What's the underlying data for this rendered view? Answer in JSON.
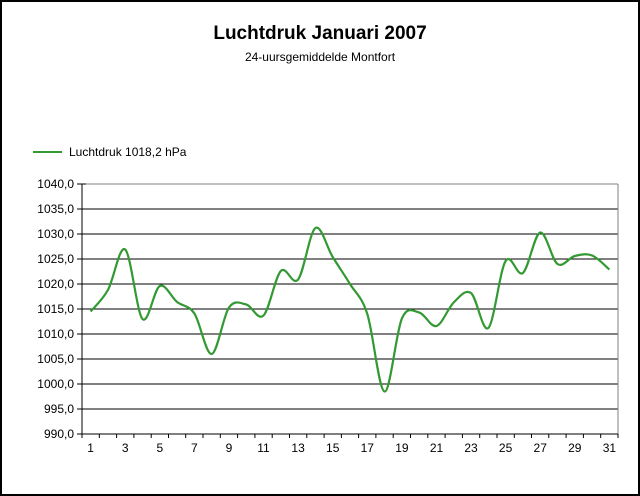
{
  "chart_data": {
    "type": "line",
    "title": "Luchtdruk Januari 2007",
    "subtitle": "24-uursgemiddelde Montfort",
    "legend_position": "left-above-plot",
    "grid": true,
    "line_color": "#339933",
    "plot_border_color": "#808080",
    "gridline_color": "#000000",
    "axis_color": "#000000",
    "xlabel": "",
    "ylabel": "",
    "ylim": [
      990,
      1040
    ],
    "ytick_step": 5,
    "ytick_values": [
      990,
      995,
      1000,
      1005,
      1010,
      1015,
      1020,
      1025,
      1030,
      1035,
      1040
    ],
    "ytick_labels": [
      "990,0",
      "995,0",
      "1000,0",
      "1005,0",
      "1010,0",
      "1015,0",
      "1020,0",
      "1025,0",
      "1030,0",
      "1035,0",
      "1040,0"
    ],
    "x": [
      1,
      2,
      3,
      4,
      5,
      6,
      7,
      8,
      9,
      10,
      11,
      12,
      13,
      14,
      15,
      16,
      17,
      18,
      19,
      20,
      21,
      22,
      23,
      24,
      25,
      26,
      27,
      28,
      29,
      30,
      31
    ],
    "xtick_labels": [
      1,
      3,
      5,
      7,
      9,
      11,
      13,
      15,
      17,
      19,
      21,
      23,
      25,
      27,
      29,
      31
    ],
    "series": [
      {
        "name": "Luchtdruk 1018,2 hPa",
        "values": [
          1014.5,
          1018.8,
          1026.9,
          1013.0,
          1019.6,
          1016.4,
          1014.1,
          1006.0,
          1015.3,
          1015.9,
          1013.7,
          1022.6,
          1020.9,
          1031.2,
          1025.4,
          1020.0,
          1014.0,
          998.5,
          1013.1,
          1014.3,
          1011.6,
          1016.3,
          1018.2,
          1011.2,
          1024.6,
          1022.2,
          1030.3,
          1024.0,
          1025.6,
          1025.7,
          1022.9
        ]
      }
    ]
  }
}
